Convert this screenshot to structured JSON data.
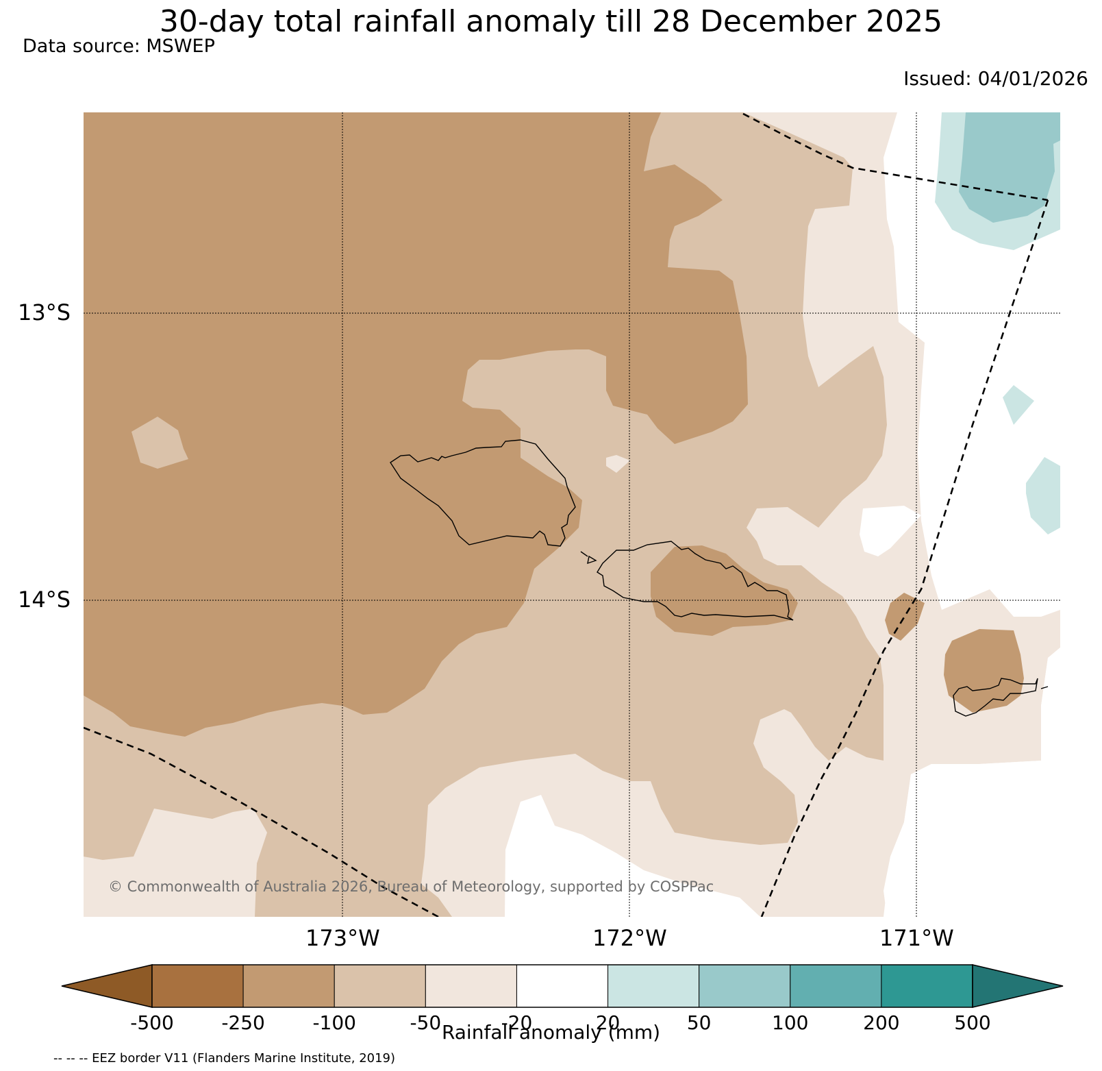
{
  "title": "30-day total rainfall anomaly till 28 December 2025",
  "data_source": "Data source: MSWEP",
  "issued": "Issued: 04/01/2026",
  "copyright": "© Commonwealth of Australia 2026, Bureau of Meteorology, supported by COSPPac",
  "lat_labels": [
    "13°S",
    "14°S"
  ],
  "lon_labels": [
    "173°W",
    "172°W",
    "171°W"
  ],
  "colorbar": {
    "title": "Rainfall anomaly (mm)",
    "ticks": [
      "-500",
      "-250",
      "-100",
      "-50",
      "-20",
      "20",
      "50",
      "100",
      "200",
      "500"
    ],
    "colors": [
      "#8e5a26",
      "#a8713f",
      "#c29a72",
      "#dac2aa",
      "#f1e6dd",
      "#ffffff",
      "#cbe5e3",
      "#99c9ca",
      "#62afb0",
      "#2e9893",
      "#237574"
    ]
  },
  "legend_note": "-- -- -- EEZ border V11 (Flanders Marine Institute, 2019)"
}
